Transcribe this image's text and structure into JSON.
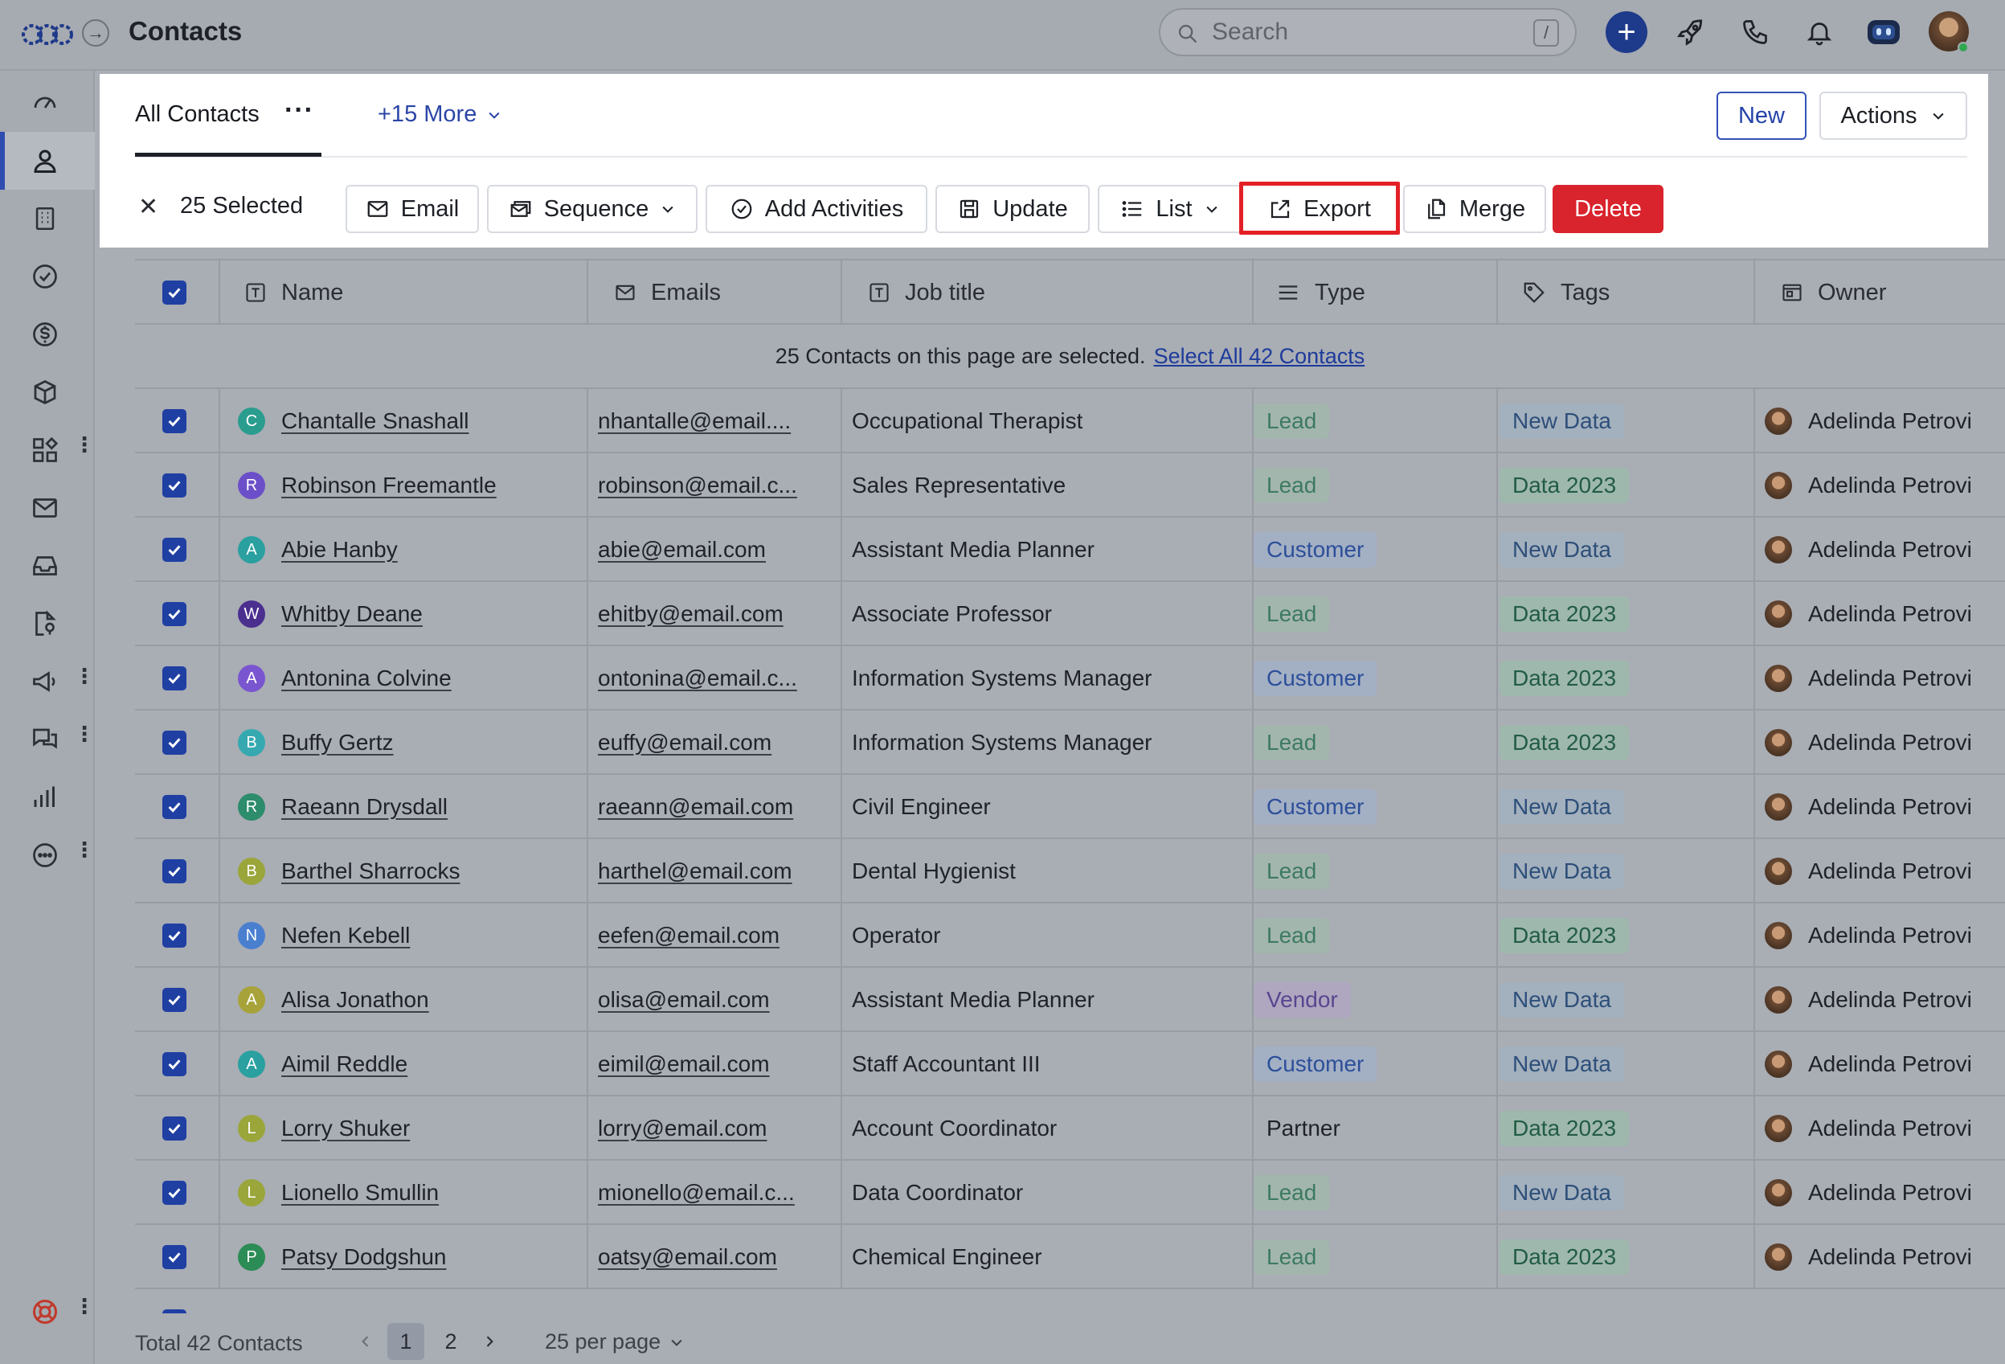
{
  "header": {
    "title": "Contacts",
    "search_placeholder": "Search",
    "search_shortcut": "/"
  },
  "sidebar": {
    "items": [
      "dashboard-icon",
      "contacts-icon",
      "companies-icon",
      "tasks-icon",
      "deals-icon",
      "products-icon",
      "apps-icon",
      "email-icon",
      "inbox-icon",
      "reports-doc-icon",
      "campaign-icon",
      "chat-icon",
      "analytics-icon",
      "more-icon"
    ]
  },
  "tabs": {
    "active": "All Contacts",
    "more": "+15 More"
  },
  "buttons": {
    "new": "New",
    "actions": "Actions"
  },
  "selection": {
    "count": "25 Selected",
    "email": "Email",
    "sequence": "Sequence",
    "add_activities": "Add Activities",
    "update": "Update",
    "list": "List",
    "export": "Export",
    "merge": "Merge",
    "delete": "Delete"
  },
  "table": {
    "columns": [
      "Name",
      "Emails",
      "Job title",
      "Type",
      "Tags",
      "Owner"
    ],
    "banner_text": "25 Contacts on this page are selected.",
    "banner_link": "Select All 42 Contacts",
    "rows": [
      {
        "initial": "C",
        "color": "#2a9d8f",
        "name": "Chantalle Snashall",
        "email": "nhantalle@email....",
        "job": "Occupational Therapist",
        "type": "Lead",
        "tag": "New Data",
        "owner": "Adelinda Petrovi"
      },
      {
        "initial": "R",
        "color": "#6b4fc8",
        "name": "Robinson Freemantle",
        "email": "robinson@email.c...",
        "job": "Sales Representative",
        "type": "Lead",
        "tag": "Data 2023",
        "owner": "Adelinda Petrovi"
      },
      {
        "initial": "A",
        "color": "#2aa0a0",
        "name": "Abie Hanby",
        "email": "abie@email.com",
        "job": "Assistant Media Planner",
        "type": "Customer",
        "tag": "New Data",
        "owner": "Adelinda Petrovi"
      },
      {
        "initial": "W",
        "color": "#4b2f8f",
        "name": "Whitby Deane",
        "email": "ehitby@email.com",
        "job": "Associate Professor",
        "type": "Lead",
        "tag": "Data 2023",
        "owner": "Adelinda Petrovi"
      },
      {
        "initial": "A",
        "color": "#7a55d0",
        "name": "Antonina Colvine",
        "email": "ontonina@email.c...",
        "job": "Information Systems Manager",
        "type": "Customer",
        "tag": "Data 2023",
        "owner": "Adelinda Petrovi"
      },
      {
        "initial": "B",
        "color": "#36a9b0",
        "name": "Buffy Gertz",
        "email": "euffy@email.com",
        "job": "Information Systems Manager",
        "type": "Lead",
        "tag": "Data 2023",
        "owner": "Adelinda Petrovi"
      },
      {
        "initial": "R",
        "color": "#2c8c6c",
        "name": "Raeann Drysdall",
        "email": "raeann@email.com",
        "job": "Civil Engineer",
        "type": "Customer",
        "tag": "New Data",
        "owner": "Adelinda Petrovi"
      },
      {
        "initial": "B",
        "color": "#9aa63a",
        "name": "Barthel Sharrocks",
        "email": "harthel@email.com",
        "job": "Dental Hygienist",
        "type": "Lead",
        "tag": "New Data",
        "owner": "Adelinda Petrovi"
      },
      {
        "initial": "N",
        "color": "#4a7fd0",
        "name": "Nefen Kebell",
        "email": "eefen@email.com",
        "job": "Operator",
        "type": "Lead",
        "tag": "Data 2023",
        "owner": "Adelinda Petrovi"
      },
      {
        "initial": "A",
        "color": "#a7a33a",
        "name": "Alisa Jonathon",
        "email": "olisa@email.com",
        "job": "Assistant Media Planner",
        "type": "Vendor",
        "tag": "New Data",
        "owner": "Adelinda Petrovi"
      },
      {
        "initial": "A",
        "color": "#2aa0a0",
        "name": "Aimil Reddle",
        "email": "eimil@email.com",
        "job": "Staff Accountant III",
        "type": "Customer",
        "tag": "New Data",
        "owner": "Adelinda Petrovi"
      },
      {
        "initial": "L",
        "color": "#9aa63a",
        "name": "Lorry Shuker",
        "email": "lorry@email.com",
        "job": "Account Coordinator",
        "type": "Partner",
        "tag": "Data 2023",
        "owner": "Adelinda Petrovi"
      },
      {
        "initial": "L",
        "color": "#9aa63a",
        "name": "Lionello Smullin",
        "email": "mionello@email.c...",
        "job": "Data Coordinator",
        "type": "Lead",
        "tag": "New Data",
        "owner": "Adelinda Petrovi"
      },
      {
        "initial": "P",
        "color": "#2c8c55",
        "name": "Patsy Dodgshun",
        "email": "oatsy@email.com",
        "job": "Chemical Engineer",
        "type": "Lead",
        "tag": "Data 2023",
        "owner": "Adelinda Petrovi"
      }
    ]
  },
  "pill_colors": {
    "Lead": {
      "bg": "#a3b6ad",
      "fg": "#3d7a62"
    },
    "Customer": {
      "bg": "#a3b0c4",
      "fg": "#2d4f9a"
    },
    "Vendor": {
      "bg": "#aea7bf",
      "fg": "#5a4590"
    },
    "Partner": {
      "bg": "transparent",
      "fg": "#1f2228"
    },
    "New Data": {
      "bg": "#a3b0bd",
      "fg": "#2d4f7a"
    },
    "Data 2023": {
      "bg": "#9fb8ad",
      "fg": "#225c45"
    }
  },
  "footer": {
    "total": "Total 42 Contacts",
    "pages": [
      "1",
      "2"
    ],
    "per_page": "25 per page"
  }
}
